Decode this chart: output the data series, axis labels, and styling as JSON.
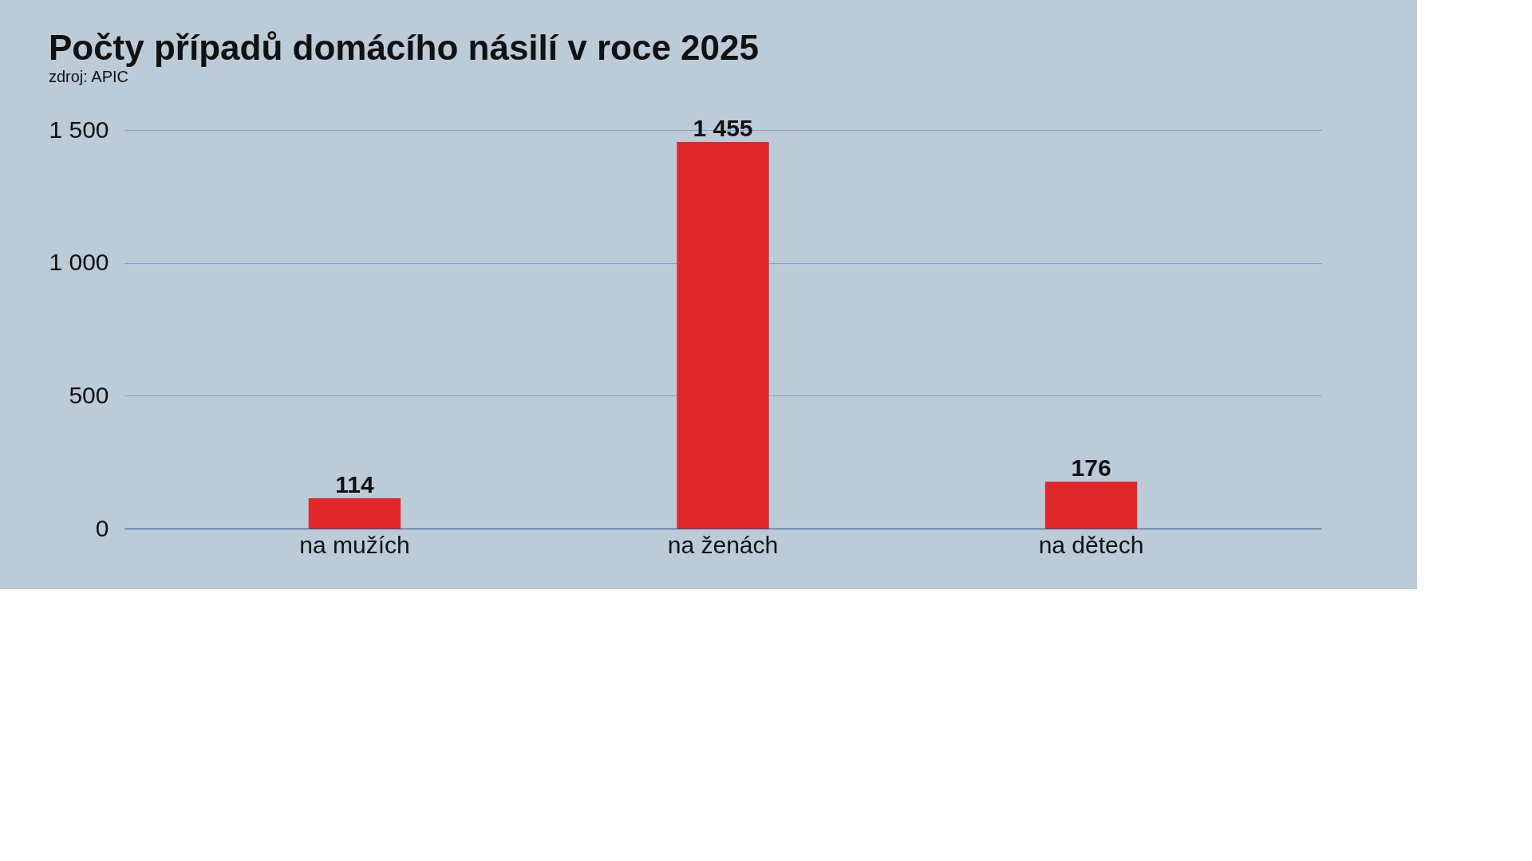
{
  "chart_data": {
    "type": "bar",
    "title": "Počty případů domácího násilí v roce 2025",
    "annotations": [
      "zdroj: APIC"
    ],
    "categories": [
      "na mužích",
      "na ženách",
      "na dětech"
    ],
    "values": [
      114,
      1455,
      176
    ],
    "value_labels": [
      "114",
      "1 455",
      "176"
    ],
    "color": "#e0282a",
    "ylim": [
      0,
      1500
    ],
    "yticks": [
      0,
      500,
      {
        "value": 1000,
        "label": "1 000"
      },
      {
        "value": 1500,
        "label": "1 500"
      }
    ],
    "grid": "y"
  }
}
